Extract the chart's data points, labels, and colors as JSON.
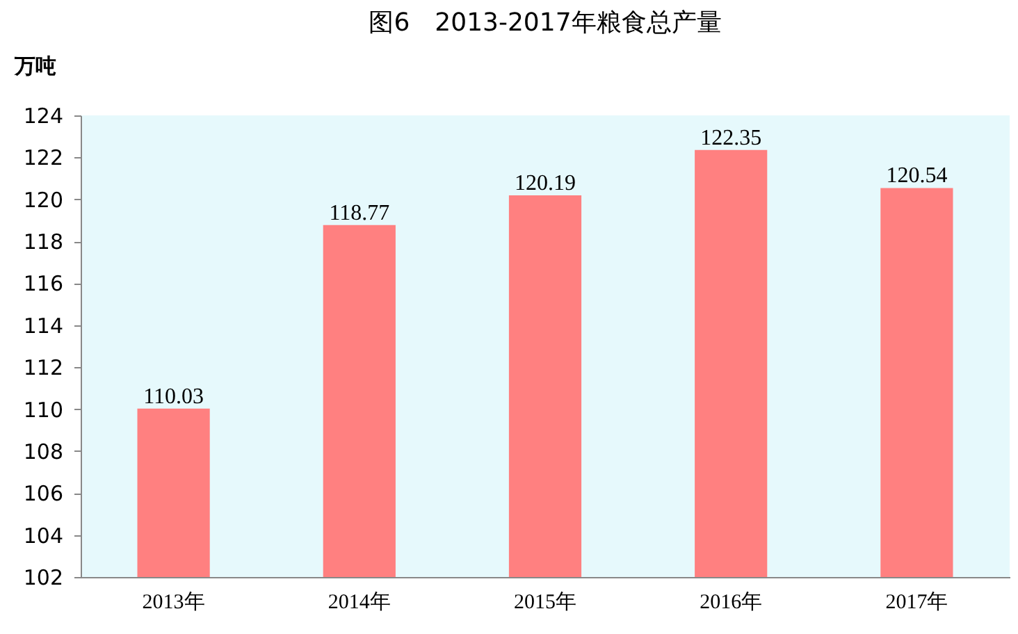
{
  "chart_data": {
    "type": "bar",
    "title": "图6　2013-2017年粮食总产量",
    "ylabel": "万吨",
    "categories": [
      "2013年",
      "2014年",
      "2015年",
      "2016年",
      "2017年"
    ],
    "values": [
      110.03,
      118.77,
      120.19,
      122.35,
      120.54
    ],
    "color": "#ff8080",
    "ylim": [
      102,
      124
    ],
    "yticks": [
      102,
      104,
      106,
      108,
      110,
      112,
      114,
      116,
      118,
      120,
      122,
      124
    ],
    "data_labels": true,
    "grid": false
  }
}
